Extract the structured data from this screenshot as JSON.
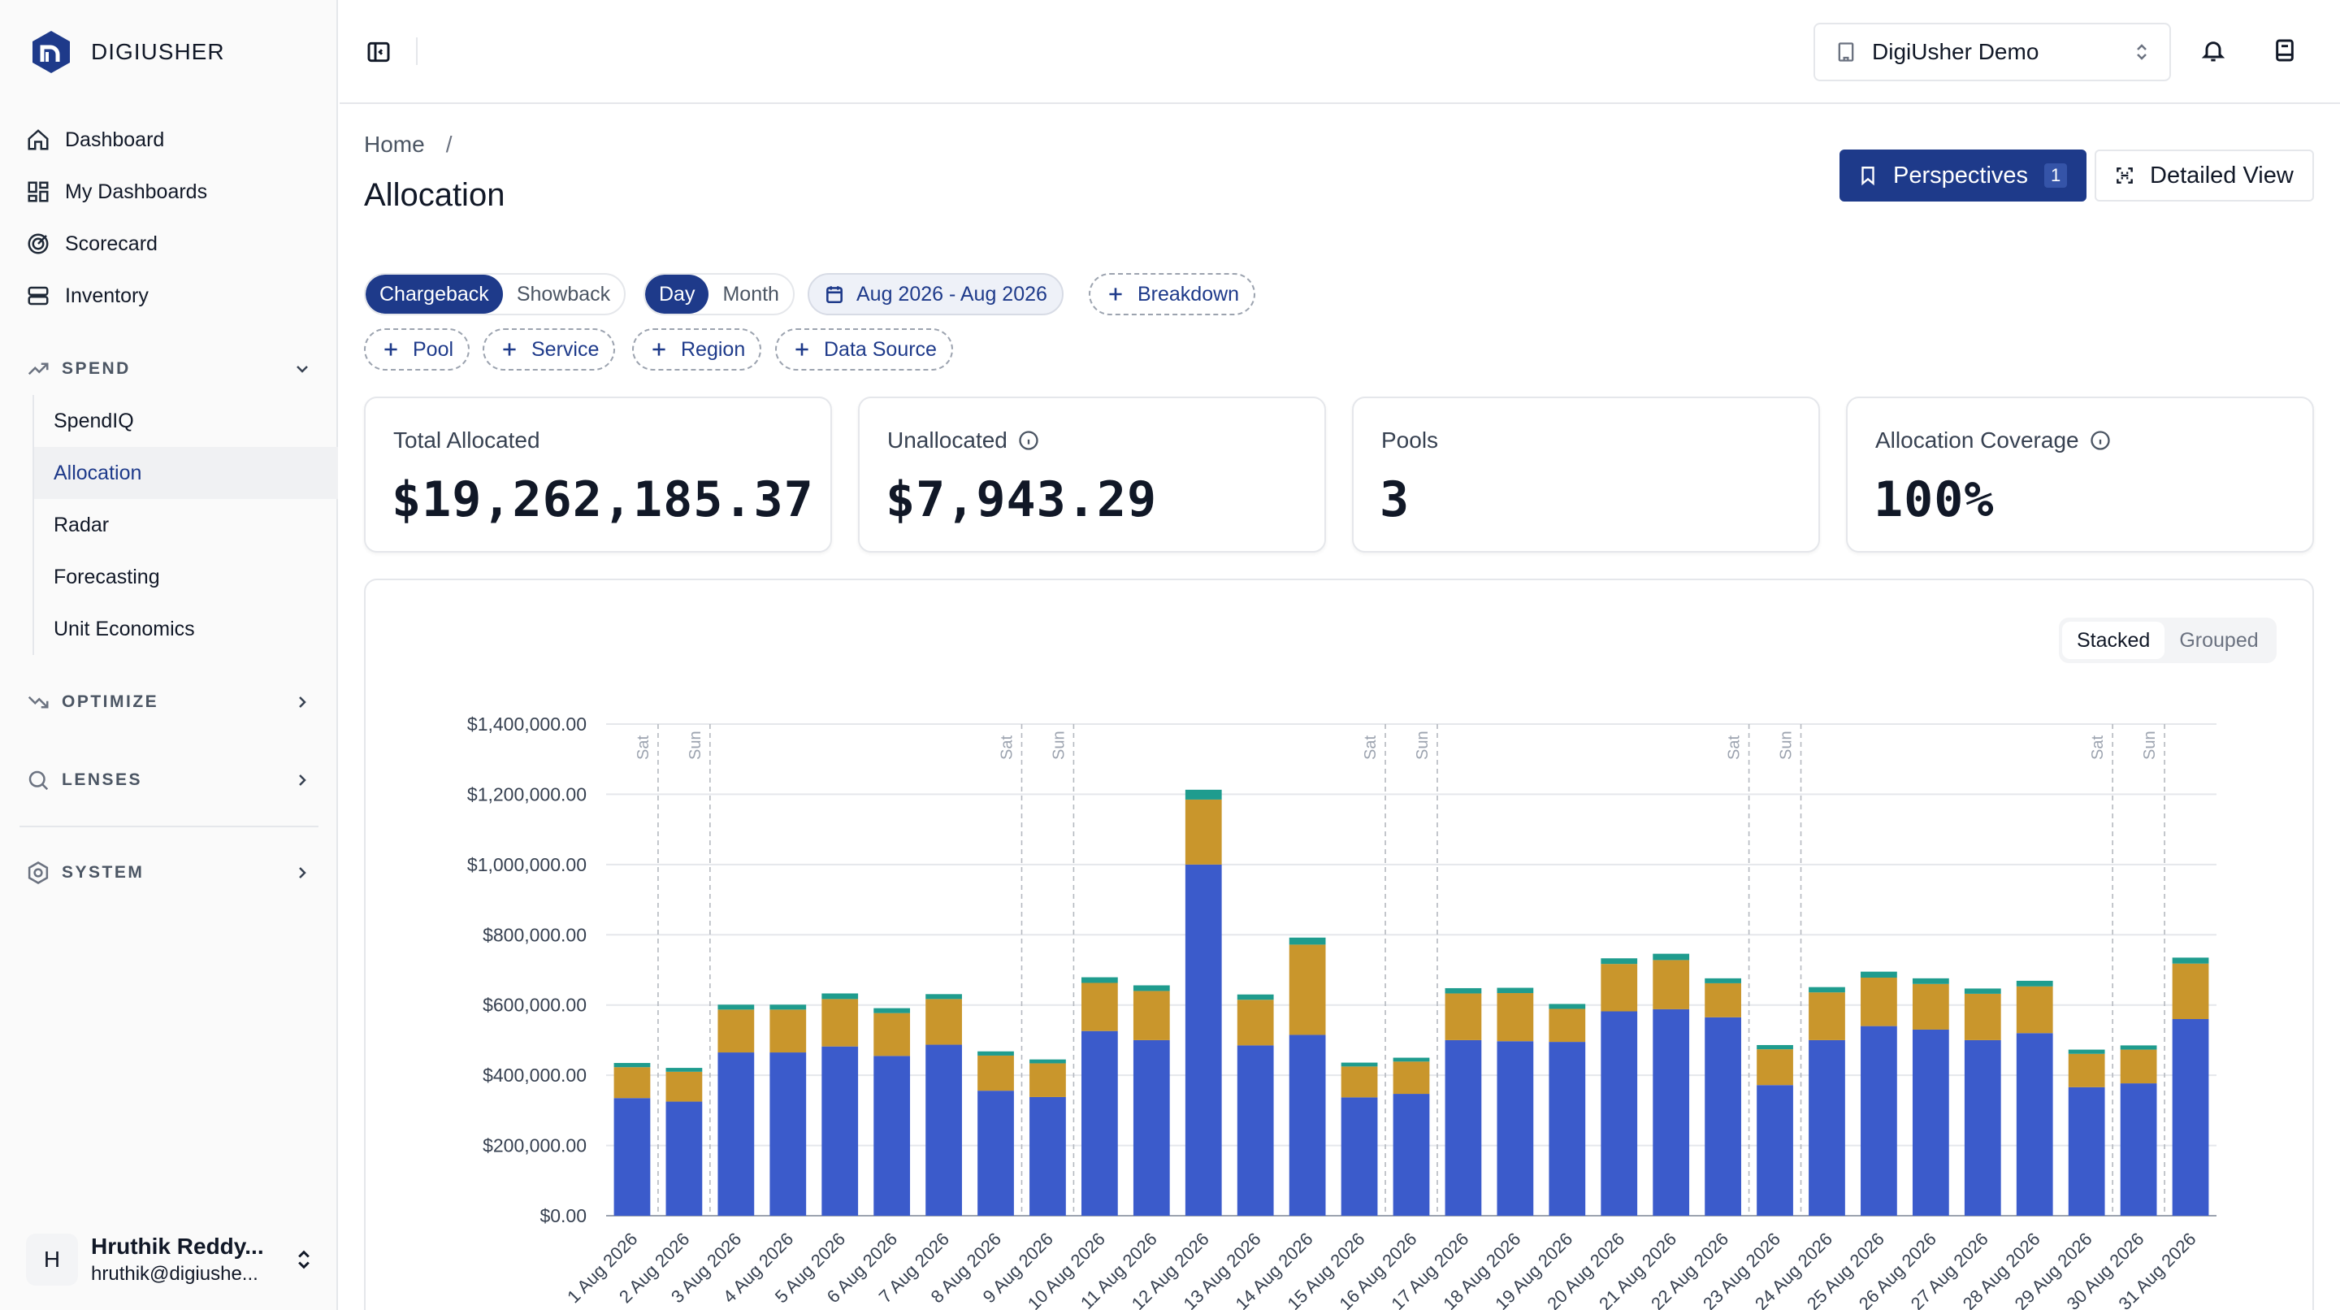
{
  "brand": {
    "name": "DIGIUSHER"
  },
  "nav": {
    "dashboard": "Dashboard",
    "my_dashboards": "My Dashboards",
    "scorecard": "Scorecard",
    "inventory": "Inventory",
    "spend_section": "SPEND",
    "spend_items": [
      "SpendIQ",
      "Allocation",
      "Radar",
      "Forecasting",
      "Unit Economics"
    ],
    "optimize_section": "OPTIMIZE",
    "lenses_section": "LENSES",
    "system_section": "SYSTEM"
  },
  "user": {
    "initial": "H",
    "name": "Hruthik Reddy...",
    "email": "hruthik@digiushe..."
  },
  "topbar": {
    "org": "DigiUsher Demo"
  },
  "page": {
    "breadcrumb_home": "Home",
    "breadcrumb_sep": "/",
    "title": "Allocation",
    "perspectives_label": "Perspectives",
    "perspectives_count": "1",
    "detailed_view_label": "Detailed View"
  },
  "filters": {
    "mode_options": [
      "Chargeback",
      "Showback"
    ],
    "mode_selected": "Chargeback",
    "granularity_options": [
      "Day",
      "Month"
    ],
    "granularity_selected": "Day",
    "date_range": "Aug 2026 - Aug 2026",
    "breakdown": "Breakdown",
    "chips": [
      "Pool",
      "Service",
      "Region",
      "Data Source"
    ]
  },
  "kpis": {
    "total_allocated_label": "Total Allocated",
    "total_allocated_value": "$19,262,185.37",
    "unallocated_label": "Unallocated",
    "unallocated_value": "$7,943.29",
    "pools_label": "Pools",
    "pools_value": "3",
    "coverage_label": "Allocation Coverage",
    "coverage_value": "100%"
  },
  "chart_view": {
    "options": [
      "Stacked",
      "Grouped"
    ],
    "selected": "Stacked"
  },
  "chart_data": {
    "type": "bar",
    "stacked": true,
    "categories": [
      "1 Aug 2026",
      "2 Aug 2026",
      "3 Aug 2026",
      "4 Aug 2026",
      "5 Aug 2026",
      "6 Aug 2026",
      "7 Aug 2026",
      "8 Aug 2026",
      "9 Aug 2026",
      "10 Aug 2026",
      "11 Aug 2026",
      "12 Aug 2026",
      "13 Aug 2026",
      "14 Aug 2026",
      "15 Aug 2026",
      "16 Aug 2026",
      "17 Aug 2026",
      "18 Aug 2026",
      "19 Aug 2026",
      "20 Aug 2026",
      "21 Aug 2026",
      "22 Aug 2026",
      "23 Aug 2026",
      "24 Aug 2026",
      "25 Aug 2026",
      "26 Aug 2026",
      "27 Aug 2026",
      "28 Aug 2026",
      "29 Aug 2026",
      "30 Aug 2026",
      "31 Aug 2026"
    ],
    "series": [
      {
        "color": "#3b5bcb",
        "values": [
          335000,
          325000,
          465000,
          465000,
          482000,
          455000,
          487000,
          356000,
          338000,
          526000,
          500000,
          1000000,
          485000,
          515000,
          337000,
          347000,
          500000,
          497000,
          495000,
          582000,
          588000,
          565000,
          372000,
          500000,
          540000,
          530000,
          500000,
          520000,
          366000,
          377000,
          560000
        ]
      },
      {
        "color": "#c9962c",
        "values": [
          88000,
          85000,
          122000,
          122000,
          135000,
          122000,
          130000,
          100000,
          96000,
          137000,
          140000,
          185000,
          130000,
          257000,
          88000,
          92000,
          133000,
          137000,
          94000,
          135000,
          140000,
          97000,
          102000,
          136000,
          138000,
          130000,
          132000,
          133000,
          95000,
          96000,
          158000
        ]
      },
      {
        "color": "#1f9c8e",
        "values": [
          12000,
          11000,
          14000,
          14000,
          16000,
          14000,
          14000,
          12000,
          11000,
          16000,
          16000,
          28000,
          15000,
          20000,
          11000,
          11000,
          15000,
          15000,
          14000,
          16000,
          18000,
          14000,
          12000,
          15000,
          17000,
          16000,
          15000,
          16000,
          12000,
          12000,
          17000
        ]
      }
    ],
    "ylim": [
      0,
      1400000
    ],
    "yticks": [
      "$0.00",
      "$200,000.00",
      "$400,000.00",
      "$600,000.00",
      "$800,000.00",
      "$1,000,000.00",
      "$1,200,000.00",
      "$1,400,000.00"
    ],
    "weekend_markers": [
      {
        "after": "1 Aug 2026",
        "label": "Sat"
      },
      {
        "after": "2 Aug 2026",
        "label": "Sun"
      },
      {
        "after": "8 Aug 2026",
        "label": "Sat"
      },
      {
        "after": "9 Aug 2026",
        "label": "Sun"
      },
      {
        "after": "15 Aug 2026",
        "label": "Sat"
      },
      {
        "after": "16 Aug 2026",
        "label": "Sun"
      },
      {
        "after": "22 Aug 2026",
        "label": "Sat"
      },
      {
        "after": "23 Aug 2026",
        "label": "Sun"
      },
      {
        "after": "29 Aug 2026",
        "label": "Sat"
      },
      {
        "after": "30 Aug 2026",
        "label": "Sun"
      }
    ],
    "grid": true
  }
}
